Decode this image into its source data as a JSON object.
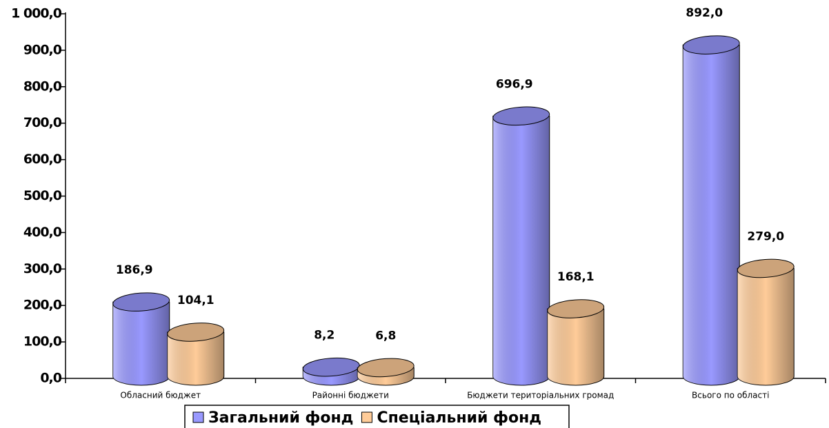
{
  "chart_data": {
    "type": "bar",
    "categories": [
      "Обласний бюджет",
      "Районні бюджети",
      "Бюджети територіальних громад",
      "Всього по області"
    ],
    "series": [
      {
        "name": "Загальний фонд",
        "color": "#9999ff",
        "values": [
          186.9,
          8.2,
          696.9,
          892.0
        ],
        "value_labels": [
          "186,9",
          "8,2",
          "696,9",
          "892,0"
        ]
      },
      {
        "name": "Спеціальний фонд",
        "color": "#ffcc99",
        "values": [
          104.1,
          6.8,
          168.1,
          279.0
        ],
        "value_labels": [
          "104,1",
          "6,8",
          "168,1",
          "279,0"
        ]
      }
    ],
    "ylim": [
      0,
      1000
    ],
    "yticks": [
      {
        "value": 0,
        "label": "0,0"
      },
      {
        "value": 100,
        "label": "100,0"
      },
      {
        "value": 200,
        "label": "200,0"
      },
      {
        "value": 300,
        "label": "300,0"
      },
      {
        "value": 400,
        "label": "400,0"
      },
      {
        "value": 500,
        "label": "500,0"
      },
      {
        "value": 600,
        "label": "600,0"
      },
      {
        "value": 700,
        "label": "700,0"
      },
      {
        "value": 800,
        "label": "800,0"
      },
      {
        "value": 900,
        "label": "900,0"
      },
      {
        "value": 1000,
        "label": "1 000,0"
      }
    ],
    "grid": false
  }
}
